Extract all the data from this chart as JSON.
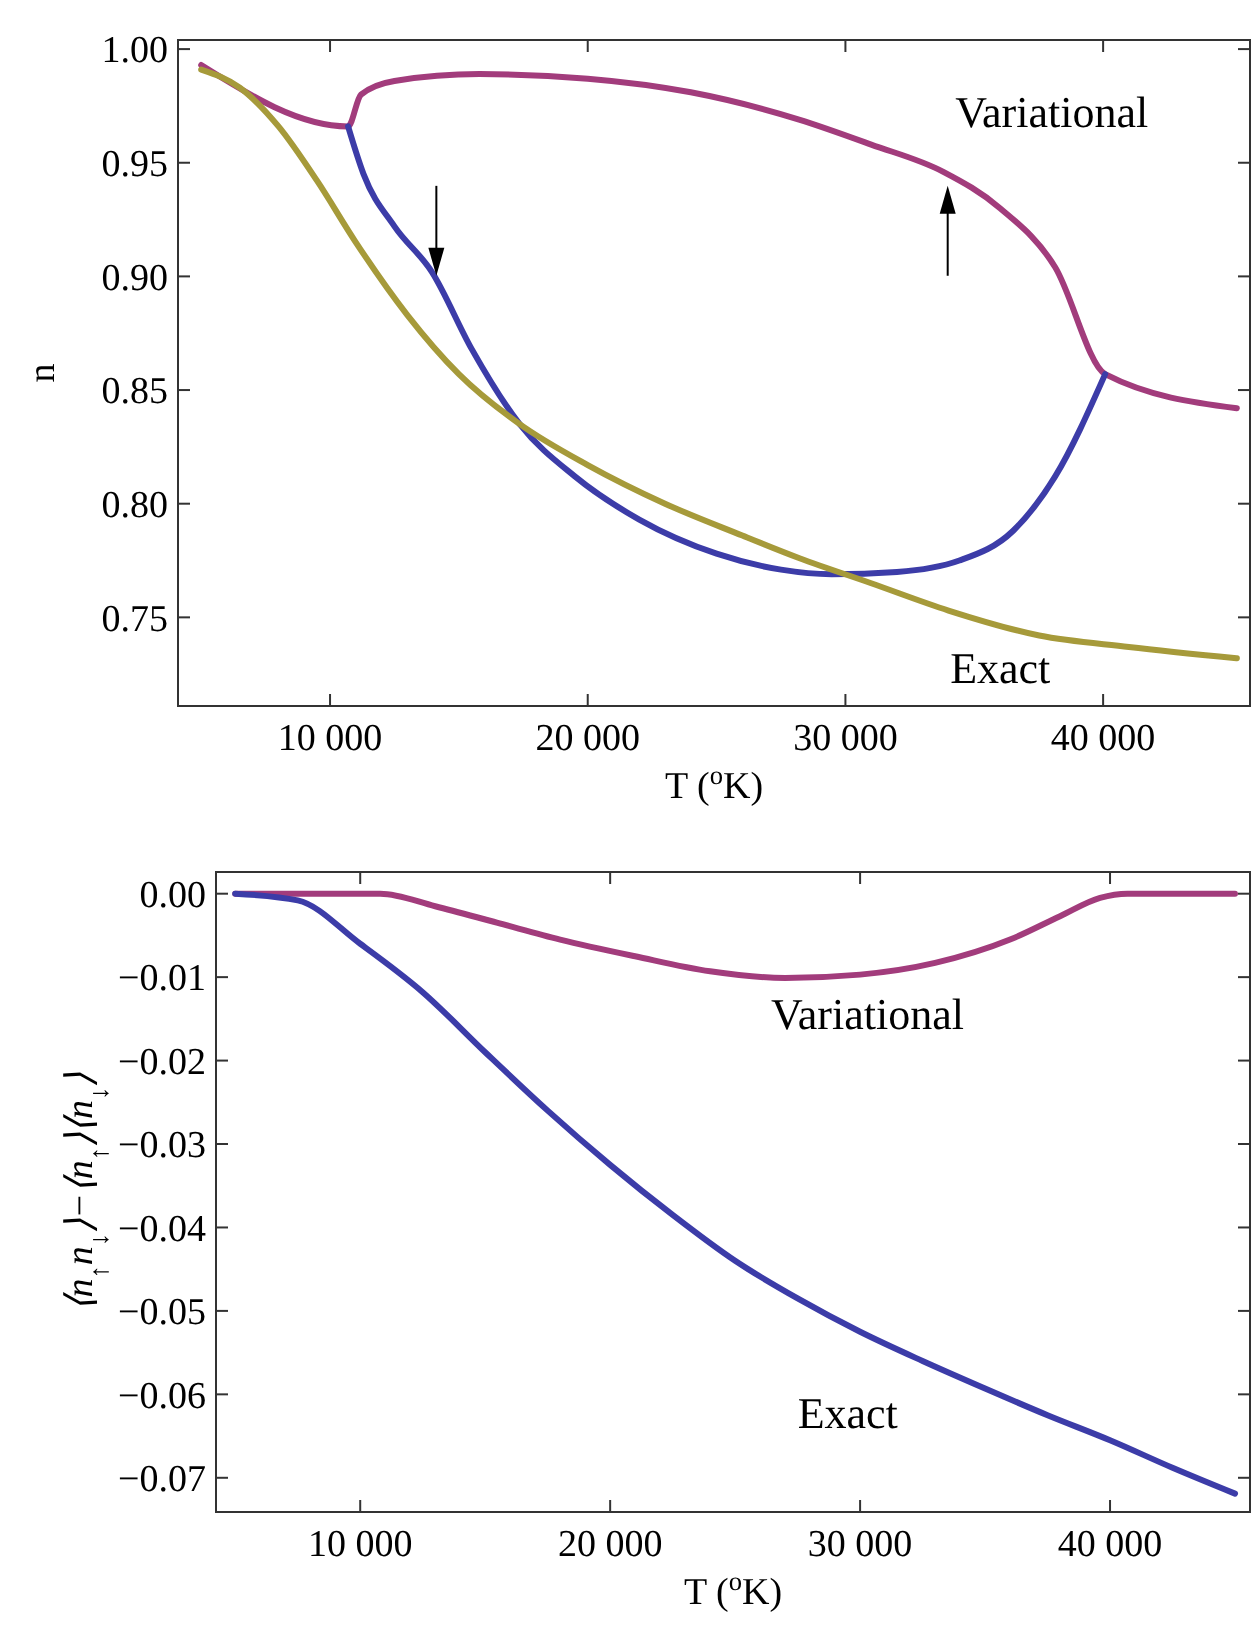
{
  "chart_data": [
    {
      "type": "line",
      "xlabel": "T ($^{o}$K)",
      "ylabel": "n",
      "xlim": [
        4100,
        45700
      ],
      "ylim": [
        0.711,
        1.004
      ],
      "xticks": [
        {
          "value": 10000,
          "label": "10 000"
        },
        {
          "value": 20000,
          "label": "20 000"
        },
        {
          "value": 30000,
          "label": "30 000"
        },
        {
          "value": 40000,
          "label": "40 000"
        }
      ],
      "yticks": [
        {
          "value": 0.75,
          "label": "0.75"
        },
        {
          "value": 0.8,
          "label": "0.80"
        },
        {
          "value": 0.85,
          "label": "0.85"
        },
        {
          "value": 0.9,
          "label": "0.90"
        },
        {
          "value": 0.95,
          "label": "0.95"
        },
        {
          "value": 1.0,
          "label": "1.00"
        }
      ],
      "grid": false,
      "series": [
        {
          "name": "Variational",
          "color": "#a23c7c",
          "x": [
            5000,
            10700,
            11200,
            12500,
            15800,
            20000,
            24000,
            28200,
            31000,
            33800,
            36000,
            38140,
            40080,
            45190
          ],
          "values": [
            0.993,
            0.966,
            0.98,
            0.986,
            0.989,
            0.987,
            0.981,
            0.969,
            0.958,
            0.946,
            0.93,
            0.904,
            0.857,
            0.842
          ]
        },
        {
          "color": "#3c3ca8",
          "x": [
            10700,
            11300,
            12500,
            13950,
            15500,
            17360,
            19500,
            22000,
            25000,
            27500,
            29460,
            32000,
            34420,
            36500,
            38140,
            40080
          ],
          "values": [
            0.966,
            0.945,
            0.922,
            0.902,
            0.868,
            0.835,
            0.812,
            0.793,
            0.778,
            0.771,
            0.769,
            0.77,
            0.775,
            0.788,
            0.812,
            0.857
          ]
        },
        {
          "name": "Exact",
          "color": "#a69a3a",
          "x": [
            5000,
            6500,
            8000,
            9500,
            11000,
            13000,
            15000,
            17360,
            20000,
            23000,
            26000,
            28220,
            31000,
            34000,
            37520,
            41000,
            45190
          ],
          "values": [
            0.991,
            0.983,
            0.966,
            0.942,
            0.915,
            0.883,
            0.857,
            0.835,
            0.817,
            0.8,
            0.786,
            0.776,
            0.765,
            0.753,
            0.742,
            0.737,
            0.732
          ]
        }
      ]
    },
    {
      "type": "line",
      "xlabel": "T ($^{o}$K)",
      "ylabel": "⟨n$_{↑}$n$_{↓}$⟩−⟨n$_{↑}$⟩⟨n$_{↓}$⟩",
      "xlim": [
        4230,
        45600
      ],
      "ylim": [
        -0.0741,
        0.0026
      ],
      "xticks": [
        {
          "value": 10000,
          "label": "10 000"
        },
        {
          "value": 20000,
          "label": "20 000"
        },
        {
          "value": 30000,
          "label": "30 000"
        },
        {
          "value": 40000,
          "label": "40 000"
        }
      ],
      "yticks": [
        {
          "value": 0,
          "label": "0.00"
        },
        {
          "value": -0.01,
          "label": "−0.01"
        },
        {
          "value": -0.02,
          "label": "−0.02"
        },
        {
          "value": -0.03,
          "label": "−0.03"
        },
        {
          "value": -0.04,
          "label": "−0.04"
        },
        {
          "value": -0.05,
          "label": "−0.05"
        },
        {
          "value": -0.06,
          "label": "−0.06"
        },
        {
          "value": -0.07,
          "label": "−0.07"
        }
      ],
      "grid": false,
      "series": [
        {
          "name": "Variational",
          "color": "#a23c7c",
          "x": [
            5000,
            10800,
            13000,
            15500,
            18000,
            21000,
            24000,
            27000,
            30000,
            33000,
            36000,
            38000,
            39600,
            40700,
            45000
          ],
          "values": [
            0,
            0,
            -0.0015,
            -0.0035,
            -0.0055,
            -0.0075,
            -0.0093,
            -0.0101,
            -0.0097,
            -0.0083,
            -0.0055,
            -0.0027,
            -0.0005,
            0,
            0
          ]
        },
        {
          "name": "Exact",
          "color": "#3c3ca8",
          "x": [
            5000,
            7500,
            10000,
            12500,
            15000,
            17500,
            20000,
            22500,
            25000,
            27500,
            30000,
            32500,
            35000,
            37500,
            40000,
            42500,
            45000
          ],
          "values": [
            0,
            -0.0008,
            -0.006,
            -0.0118,
            -0.019,
            -0.026,
            -0.0325,
            -0.0385,
            -0.044,
            -0.0485,
            -0.0525,
            -0.056,
            -0.0593,
            -0.0625,
            -0.0655,
            -0.0688,
            -0.0719
          ]
        }
      ]
    }
  ]
}
